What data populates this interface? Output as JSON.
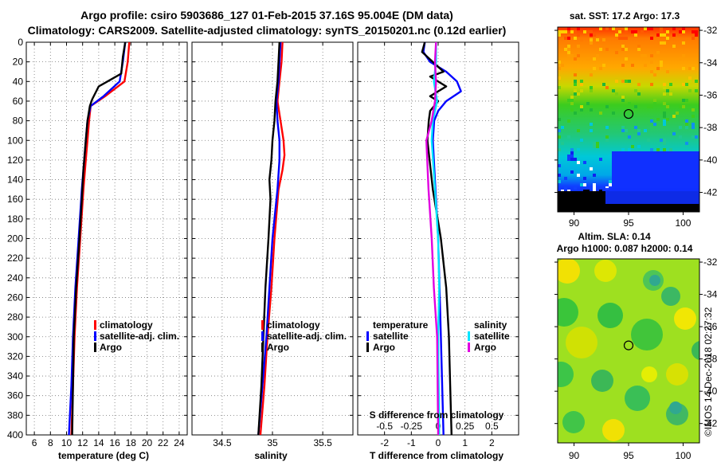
{
  "figure": {
    "title_line1": "Argo profile: csiro 5903686_127 01-Feb-2015 37.16S 95.004E (DM data)",
    "title_line2": "Climatology: CARS2009. Satellite-adjusted climatology: synTS_20150201.nc (0.12d earlier)",
    "credit": "©IMOS 14-Dec-2018 02:27:32"
  },
  "colors": {
    "climatology": "#ff0000",
    "satellite": "#0000ff",
    "argo": "#000000",
    "sal_satellite": "#00e5ff",
    "sal_argo": "#e000e0",
    "grid": "#777777"
  },
  "chart_data": [
    {
      "id": "temperature",
      "type": "line",
      "xlabel": "temperature (deg C)",
      "ylabel": "depth",
      "xlim": [
        5,
        25
      ],
      "ylim": [
        400,
        0
      ],
      "xticks": [
        6,
        8,
        10,
        12,
        14,
        16,
        18,
        20,
        22,
        24
      ],
      "yticks": [
        0,
        20,
        40,
        60,
        80,
        100,
        120,
        140,
        160,
        180,
        200,
        220,
        240,
        260,
        280,
        300,
        320,
        340,
        360,
        380,
        400
      ],
      "grid": true,
      "legend": {
        "position": "lower-right",
        "entries": [
          "climatology",
          "satellite-adj. clim.",
          "Argo"
        ]
      },
      "series": [
        {
          "name": "climatology",
          "color": "#ff0000",
          "depth": [
            0,
            20,
            40,
            55,
            65,
            80,
            100,
            120,
            150,
            200,
            250,
            300,
            350,
            400
          ],
          "values": [
            17.8,
            17.6,
            17.2,
            14.8,
            13.0,
            12.8,
            12.6,
            12.4,
            12.1,
            11.7,
            11.3,
            11.0,
            10.8,
            10.6
          ]
        },
        {
          "name": "satellite-adj. clim.",
          "color": "#0000ff",
          "depth": [
            0,
            20,
            40,
            55,
            65,
            80,
            100,
            120,
            150,
            200,
            250,
            300,
            350,
            400
          ],
          "values": [
            17.3,
            17.0,
            16.6,
            14.6,
            13.0,
            12.6,
            12.4,
            12.2,
            11.9,
            11.5,
            11.1,
            10.8,
            10.6,
            10.3
          ]
        },
        {
          "name": "Argo",
          "color": "#000000",
          "depth": [
            0,
            15,
            32,
            45,
            58,
            65,
            80,
            100,
            130,
            160,
            200,
            250,
            300,
            350,
            400
          ],
          "values": [
            17.3,
            17.0,
            16.8,
            14.0,
            13.2,
            12.9,
            12.6,
            12.4,
            12.1,
            11.9,
            11.6,
            11.2,
            10.9,
            10.8,
            10.7
          ]
        }
      ]
    },
    {
      "id": "salinity",
      "type": "line",
      "xlabel": "salinity",
      "xlim": [
        34.2,
        35.8
      ],
      "ylim": [
        400,
        0
      ],
      "xticks": [
        34.5,
        35,
        35.5
      ],
      "xticklabels": [
        "34.5",
        "35",
        "35.5"
      ],
      "grid": true,
      "legend": {
        "position": "lower-middle",
        "entries": [
          "climatology",
          "satellite-adj. clim.",
          "Argo"
        ]
      },
      "series": [
        {
          "name": "climatology",
          "color": "#ff0000",
          "depth": [
            0,
            20,
            40,
            60,
            80,
            100,
            115,
            130,
            150,
            200,
            250,
            300,
            350,
            400
          ],
          "values": [
            35.1,
            35.09,
            35.07,
            35.05,
            35.08,
            35.11,
            35.12,
            35.1,
            35.06,
            35.02,
            34.99,
            34.95,
            34.92,
            34.88
          ]
        },
        {
          "name": "satellite-adj. clim.",
          "color": "#0000ff",
          "depth": [
            0,
            20,
            40,
            60,
            80,
            100,
            120,
            150,
            200,
            250,
            300,
            350,
            400
          ],
          "values": [
            35.08,
            35.07,
            35.06,
            35.04,
            35.05,
            35.07,
            35.07,
            35.05,
            35.0,
            34.97,
            34.94,
            34.9,
            34.86
          ]
        },
        {
          "name": "Argo",
          "color": "#000000",
          "depth": [
            0,
            20,
            40,
            60,
            80,
            100,
            120,
            140,
            160,
            200,
            250,
            300,
            350,
            400
          ],
          "values": [
            35.07,
            35.06,
            35.05,
            35.03,
            35.02,
            35.0,
            34.99,
            34.97,
            34.98,
            34.96,
            34.93,
            34.91,
            34.89,
            34.86
          ]
        }
      ]
    },
    {
      "id": "difference",
      "type": "line",
      "xlabel": "T difference from climatology",
      "top_label": "S difference from climatology",
      "xlim": [
        -3,
        3
      ],
      "ylim": [
        400,
        0
      ],
      "xticks": [
        -2,
        -1,
        0,
        1,
        2
      ],
      "xticklabels": [
        "-2",
        "-1",
        "0",
        "1",
        "2"
      ],
      "top_xticklabels": [
        "-0.5",
        "-0.25",
        "0",
        "0.25",
        "0.5"
      ],
      "grid": true,
      "legend": {
        "temperature_title": "temperature",
        "salinity_title": "salinity",
        "temperature_entries": [
          "satellite",
          "Argo"
        ],
        "salinity_entries": [
          "satellite",
          "Argo"
        ]
      },
      "series": [
        {
          "name": "T satellite",
          "color": "#0000ff",
          "depth": [
            0,
            10,
            20,
            30,
            40,
            50,
            60,
            70,
            80,
            100,
            150,
            200,
            250,
            300,
            400
          ],
          "values": [
            -0.5,
            -0.55,
            -0.3,
            0.3,
            0.7,
            0.85,
            0.3,
            0.0,
            -0.15,
            -0.2,
            -0.1,
            0.0,
            0.05,
            0.1,
            0.2
          ]
        },
        {
          "name": "T Argo",
          "color": "#000000",
          "depth": [
            0,
            10,
            20,
            30,
            35,
            45,
            55,
            60,
            70,
            80,
            100,
            150,
            200,
            250,
            300,
            350,
            400
          ],
          "values": [
            -0.5,
            -0.6,
            -0.2,
            0.2,
            -0.3,
            0.3,
            -0.3,
            0.0,
            -0.3,
            -0.35,
            -0.4,
            -0.2,
            0.1,
            0.3,
            0.4,
            0.45,
            0.5
          ]
        },
        {
          "name": "S satellite",
          "color": "#00e5ff",
          "depth": [
            0,
            20,
            40,
            60,
            80,
            100,
            150,
            200,
            250,
            300,
            400
          ],
          "values": [
            -0.02,
            -0.02,
            -0.04,
            -0.01,
            -0.05,
            -0.06,
            -0.03,
            0.0,
            0.01,
            0.0,
            0.01
          ]
        },
        {
          "name": "S Argo",
          "color": "#e000e0",
          "depth": [
            0,
            20,
            40,
            60,
            80,
            100,
            150,
            200,
            250,
            300,
            400
          ],
          "values": [
            -0.02,
            -0.03,
            -0.02,
            -0.03,
            -0.06,
            -0.11,
            -0.09,
            -0.06,
            -0.04,
            -0.01,
            0.0
          ]
        }
      ]
    },
    {
      "id": "sst_map",
      "type": "heatmap",
      "title": "sat. SST: 17.2 Argo: 17.3",
      "xticks": [
        90,
        95,
        100
      ],
      "yticks": [
        -32,
        -34,
        -36,
        -38,
        -40,
        -42
      ],
      "argo_lon": 95.0,
      "argo_lat": -37.16,
      "lon_range": [
        88.5,
        101.5
      ],
      "lat_range": [
        -43.2,
        -31.8
      ]
    },
    {
      "id": "sla_map",
      "type": "heatmap",
      "title_line1": "Altim. SLA: 0.14",
      "title_line2": "Argo h1000: 0.087 h2000: 0.14",
      "xticks": [
        90,
        95,
        100
      ],
      "yticks": [
        -32,
        -34,
        -36,
        -38,
        -40,
        -42
      ],
      "argo_lon": 95.0,
      "argo_lat": -37.16,
      "lon_range": [
        88.5,
        101.5
      ],
      "lat_range": [
        -43.2,
        -31.8
      ]
    }
  ]
}
